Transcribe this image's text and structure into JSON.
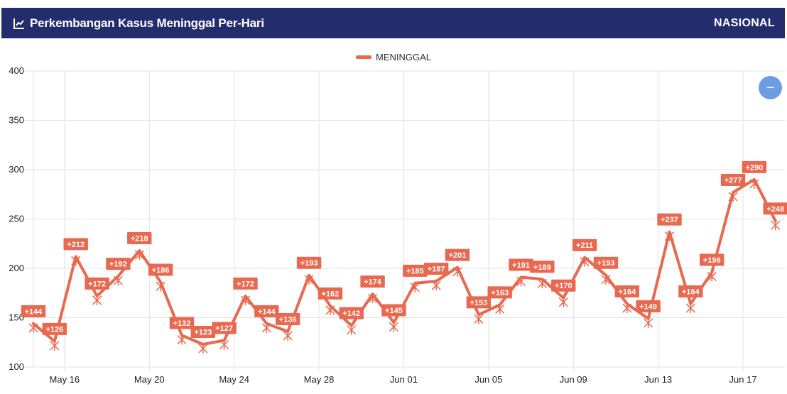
{
  "header": {
    "title": "Perkembangan Kasus Meninggal Per-Hari",
    "scope": "NASIONAL",
    "icon": "line-chart-icon"
  },
  "zoom_button": {
    "label": "−",
    "icon": "minus-icon"
  },
  "colors": {
    "header_bg": "#232c6c",
    "series": "#e8694f",
    "zoom": "#6c9de0"
  },
  "chart_data": {
    "type": "line",
    "title": "",
    "xlabel": "",
    "ylabel": "",
    "ylim": [
      100,
      400
    ],
    "yticks": [
      100,
      150,
      200,
      250,
      300,
      350,
      400
    ],
    "xticks": [
      "May 16",
      "May 20",
      "May 24",
      "May 28",
      "Jun 01",
      "Jun 05",
      "Jun 09",
      "Jun 13",
      "Jun 17"
    ],
    "x": [
      "May 15",
      "May 16",
      "May 17",
      "May 18",
      "May 19",
      "May 20",
      "May 21",
      "May 22",
      "May 23",
      "May 24",
      "May 25",
      "May 26",
      "May 27",
      "May 28",
      "May 29",
      "May 30",
      "May 31",
      "Jun 01",
      "Jun 02",
      "Jun 03",
      "Jun 04",
      "Jun 05",
      "Jun 06",
      "Jun 07",
      "Jun 08",
      "Jun 09",
      "Jun 10",
      "Jun 11",
      "Jun 12",
      "Jun 13",
      "Jun 14",
      "Jun 15",
      "Jun 16",
      "Jun 17",
      "Jun 18",
      "Jun 19"
    ],
    "grid": true,
    "legend_position": "top-center",
    "series": [
      {
        "name": "MENINGGAL",
        "values": [
          144,
          126,
          212,
          172,
          192,
          218,
          186,
          132,
          123,
          127,
          172,
          144,
          136,
          193,
          162,
          142,
          174,
          145,
          185,
          187,
          201,
          153,
          163,
          191,
          189,
          170,
          211,
          193,
          164,
          149,
          237,
          164,
          196,
          277,
          290,
          248
        ],
        "labels": [
          "+144",
          "+126",
          "+212",
          "+172",
          "+192",
          "+218",
          "+186",
          "+132",
          "+123",
          "+127",
          "+172",
          "+144",
          "+136",
          "+193",
          "+162",
          "+142",
          "+174",
          "+145",
          "+185",
          "+187",
          "+201",
          "+153",
          "+163",
          "+191",
          "+189",
          "+170",
          "+211",
          "+193",
          "+164",
          "+149",
          "+237",
          "+164",
          "+196",
          "+277",
          "+290",
          "+248"
        ]
      }
    ]
  }
}
